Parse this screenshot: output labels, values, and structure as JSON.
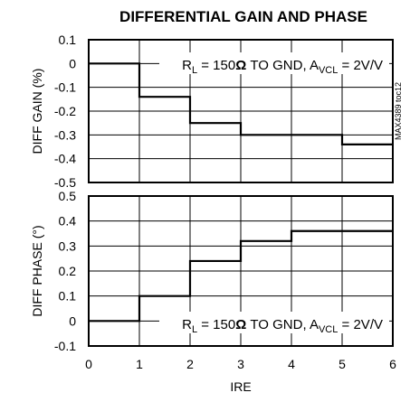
{
  "chart_data": [
    {
      "type": "line",
      "step": true,
      "title": "DIFFERENTIAL GAIN AND PHASE",
      "ylabel": "DIFF GAIN (%)",
      "xlabel": "",
      "xlim": [
        0,
        6
      ],
      "ylim": [
        -0.5,
        0.1
      ],
      "yticks": [
        "0.1",
        "0",
        "-0.1",
        "-0.2",
        "-0.3",
        "-0.4",
        "-0.5"
      ],
      "ytick_values": [
        0.1,
        0,
        -0.1,
        -0.2,
        -0.3,
        -0.4,
        -0.5
      ],
      "grid": true,
      "annotation": {
        "R": "R",
        "R_sub": "L",
        "mid": " = 150",
        "omega": "Ω",
        "gnd": " TO GND, A",
        "A_sub": "VCL",
        "tail": " = 2V/V"
      },
      "part_code": "MAX4389 toc12",
      "x": [
        0,
        1,
        2,
        3,
        4,
        5,
        6
      ],
      "series": [
        {
          "values": [
            0,
            -0.14,
            -0.25,
            -0.3,
            -0.3,
            -0.34,
            -0.34
          ]
        }
      ]
    },
    {
      "type": "line",
      "step": true,
      "title": "",
      "ylabel": "DIFF PHASE (°)",
      "xlabel": "IRE",
      "xlim": [
        0,
        6
      ],
      "ylim": [
        -0.1,
        0.5
      ],
      "xticks": [
        "0",
        "1",
        "2",
        "3",
        "4",
        "5",
        "6"
      ],
      "yticks": [
        "0.5",
        "0.4",
        "0.3",
        "0.2",
        "0.1",
        "0",
        "-0.1"
      ],
      "ytick_values": [
        0.5,
        0.4,
        0.3,
        0.2,
        0.1,
        0,
        -0.1
      ],
      "grid": true,
      "annotation": {
        "R": "R",
        "R_sub": "L",
        "mid": " = 150",
        "omega": "Ω",
        "gnd": " TO GND, A",
        "A_sub": "VCL",
        "tail": " = 2V/V"
      },
      "x": [
        0,
        1,
        2,
        3,
        4,
        5,
        6
      ],
      "series": [
        {
          "values": [
            0,
            0.1,
            0.24,
            0.32,
            0.36,
            0.36,
            0.36
          ]
        }
      ]
    }
  ]
}
